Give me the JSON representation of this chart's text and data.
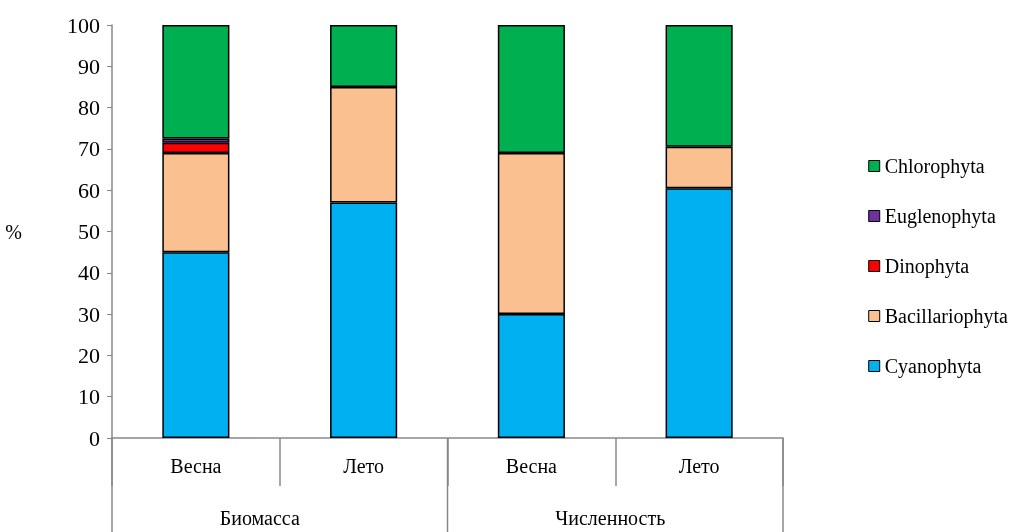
{
  "chart_data": {
    "type": "bar",
    "stacked": true,
    "ylabel": "%",
    "categories": [
      "Весна",
      "Лето",
      "Весна",
      "Лето"
    ],
    "annotations": [
      "Биомасса",
      "Численность"
    ],
    "series": [
      {
        "name": "Cyanophyta",
        "color": "#00b0f0",
        "values": [
          45,
          57,
          30,
          60.5
        ]
      },
      {
        "name": "Bacillariophyta",
        "color": "#fac090",
        "values": [
          24,
          28,
          39,
          10
        ]
      },
      {
        "name": "Dinophyta",
        "color": "#ff0000",
        "values": [
          2.5,
          null,
          null,
          null
        ]
      },
      {
        "name": "Euglenophyta",
        "color": "#7030a0",
        "values": [
          1,
          null,
          null,
          null
        ]
      },
      {
        "name": "Chlorophyta",
        "color": "#00b050",
        "values": [
          27.5,
          15,
          31,
          29.5
        ]
      }
    ],
    "ylim": [
      0,
      100
    ],
    "yticks": [
      0,
      10,
      20,
      30,
      40,
      50,
      60,
      70,
      80,
      90,
      100
    ],
    "grid": false,
    "legend": "right"
  }
}
